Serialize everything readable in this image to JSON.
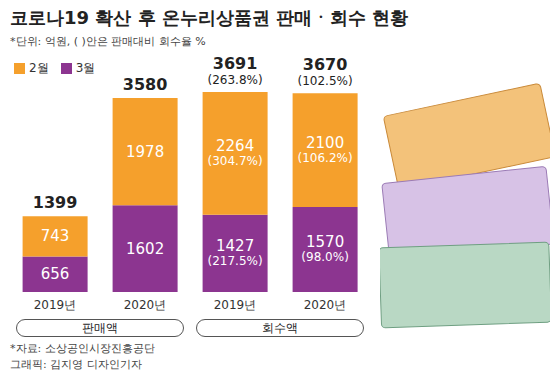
{
  "chart_data": {
    "type": "bar",
    "title": "코로나19 확산 후 온누리상품권 판매ㆍ회수 현황",
    "subtitle": "*단위: 억원, ( )안은 판매대비 회수율 %",
    "categories": [
      "2019년",
      "2020년",
      "2019년",
      "2020년"
    ],
    "groups": [
      {
        "label": "판매액",
        "start": 0,
        "end": 1
      },
      {
        "label": "회수액",
        "start": 2,
        "end": 3
      }
    ],
    "series": [
      {
        "name": "2월",
        "color": "#f5a02c",
        "values": [
          743,
          1978,
          2264,
          2100
        ],
        "value_labels": [
          "743",
          "1978",
          "2264\n(304.7%)",
          "2100\n(106.2%)"
        ]
      },
      {
        "name": "3월",
        "color": "#8c3590",
        "values": [
          656,
          1602,
          1427,
          1570
        ],
        "value_labels": [
          "656",
          "1602",
          "1427\n(217.5%)",
          "1570\n(98.0%)"
        ]
      }
    ],
    "totals": [
      1399,
      3580,
      3691,
      3670
    ],
    "total_labels": [
      "1399",
      "3580",
      "3691\n(263.8%)",
      "3670\n(102.5%)"
    ],
    "stacked": true,
    "data_labels": true,
    "tick_labels": "x",
    "source": "*자료: 소상공인시장진흥공단",
    "credit": "그래픽: 김지영 디자인기자"
  }
}
